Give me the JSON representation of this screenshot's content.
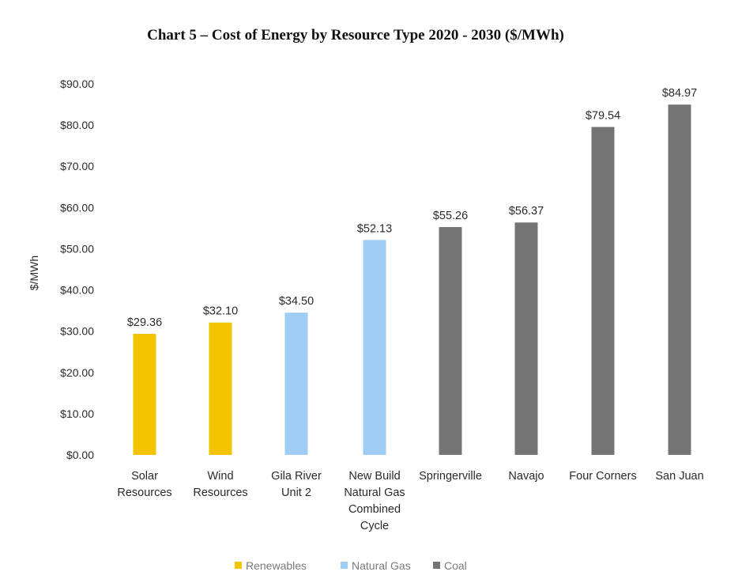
{
  "chart_data": {
    "type": "bar",
    "title": "Chart 5 – Cost of Energy by Resource Type 2020 - 2030 ($/MWh)",
    "ylabel": "$/MWh",
    "xlabel": "",
    "ylim": [
      0,
      90
    ],
    "yticks": [
      0,
      10,
      20,
      30,
      40,
      50,
      60,
      70,
      80,
      90
    ],
    "ytick_labels": [
      "$0.00",
      "$10.00",
      "$20.00",
      "$30.00",
      "$40.00",
      "$50.00",
      "$60.00",
      "$70.00",
      "$80.00",
      "$90.00"
    ],
    "grid": false,
    "legend_position": "bottom",
    "categories": [
      [
        "Solar",
        "Resources"
      ],
      [
        "Wind",
        "Resources"
      ],
      [
        "Gila River",
        "Unit 2"
      ],
      [
        "New Build",
        "Natural Gas",
        "Combined",
        "Cycle"
      ],
      [
        "Springerville"
      ],
      [
        "Navajo"
      ],
      [
        "Four Corners"
      ],
      [
        "San Juan"
      ]
    ],
    "values": [
      29.36,
      32.1,
      34.5,
      52.13,
      55.26,
      56.37,
      79.54,
      84.97
    ],
    "value_labels": [
      "$29.36",
      "$32.10",
      "$34.50",
      "$52.13",
      "$55.26",
      "$56.37",
      "$79.54",
      "$84.97"
    ],
    "bar_groups": [
      "renewables",
      "renewables",
      "gas",
      "gas",
      "coal",
      "coal",
      "coal",
      "coal"
    ],
    "legend": [
      {
        "key": "renewables",
        "label": "Renewables",
        "color": "#f5c400"
      },
      {
        "key": "gas",
        "label": "Natural Gas",
        "color": "#9fcdf4"
      },
      {
        "key": "coal",
        "label": "Coal",
        "color": "#747474"
      }
    ]
  }
}
